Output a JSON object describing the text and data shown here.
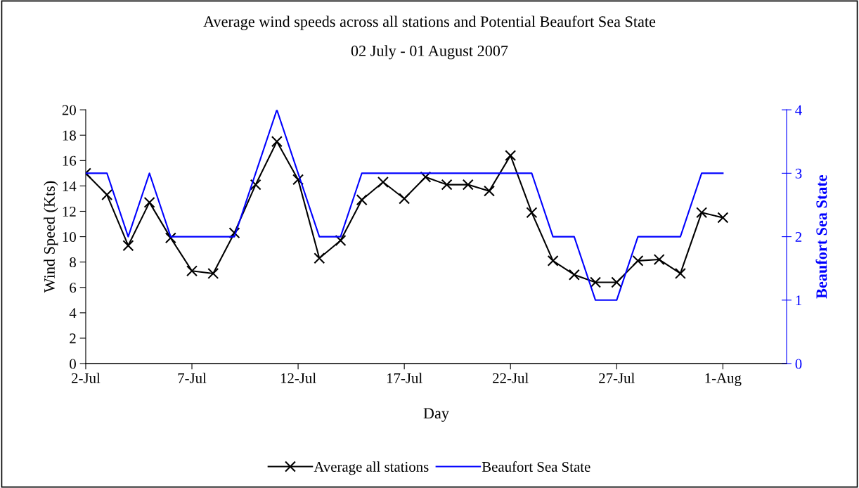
{
  "chart_data": {
    "type": "line",
    "title": "Average wind speeds across all stations and Potential Beaufort Sea State",
    "subtitle": "02 July - 01 August 2007",
    "xlabel": "Day",
    "ylabel": "Wind Speed (Kts)",
    "y2label": "Beaufort Sea State",
    "x": [
      "2007-07-02",
      "2007-07-03",
      "2007-07-04",
      "2007-07-05",
      "2007-07-06",
      "2007-07-07",
      "2007-07-08",
      "2007-07-09",
      "2007-07-10",
      "2007-07-11",
      "2007-07-12",
      "2007-07-13",
      "2007-07-14",
      "2007-07-15",
      "2007-07-16",
      "2007-07-17",
      "2007-07-18",
      "2007-07-19",
      "2007-07-20",
      "2007-07-21",
      "2007-07-22",
      "2007-07-23",
      "2007-07-24",
      "2007-07-25",
      "2007-07-26",
      "2007-07-27",
      "2007-07-28",
      "2007-07-29",
      "2007-07-30",
      "2007-07-31",
      "2007-08-01"
    ],
    "series": [
      {
        "name": "Average all stations",
        "color": "#000000",
        "marker": "cross",
        "values": [
          15.0,
          13.3,
          9.3,
          12.7,
          9.9,
          7.3,
          7.1,
          10.3,
          14.1,
          17.5,
          14.5,
          8.3,
          9.7,
          12.9,
          14.3,
          13.0,
          14.7,
          14.1,
          14.1,
          13.6,
          16.4,
          11.9,
          8.1,
          7.0,
          6.4,
          6.4,
          8.1,
          8.2,
          7.1,
          11.9,
          11.5
        ]
      },
      {
        "name": "Beaufort Sea State",
        "color": "#0000ff",
        "marker": "none",
        "axis": "y2",
        "values": [
          3,
          3,
          2,
          3,
          2,
          2,
          2,
          2,
          3,
          4,
          3,
          2,
          2,
          3,
          3,
          3,
          3,
          3,
          3,
          3,
          3,
          3,
          2,
          2,
          1,
          1,
          2,
          2,
          2,
          3,
          3
        ]
      }
    ],
    "xlim": [
      "2007-07-02",
      "2007-08-04"
    ],
    "xticks": [
      {
        "value": "2007-07-02",
        "label": "2-Jul"
      },
      {
        "value": "2007-07-07",
        "label": "7-Jul"
      },
      {
        "value": "2007-07-12",
        "label": "12-Jul"
      },
      {
        "value": "2007-07-17",
        "label": "17-Jul"
      },
      {
        "value": "2007-07-22",
        "label": "22-Jul"
      },
      {
        "value": "2007-07-27",
        "label": "27-Jul"
      },
      {
        "value": "2007-08-01",
        "label": "1-Aug"
      }
    ],
    "ylim": [
      0,
      20
    ],
    "yticks": [
      0,
      2,
      4,
      6,
      8,
      10,
      12,
      14,
      16,
      18,
      20
    ],
    "y2lim": [
      0,
      4
    ],
    "y2ticks": [
      0,
      1,
      2,
      3,
      4
    ],
    "grid": false,
    "legend": "bottom",
    "line_style": "solid"
  }
}
